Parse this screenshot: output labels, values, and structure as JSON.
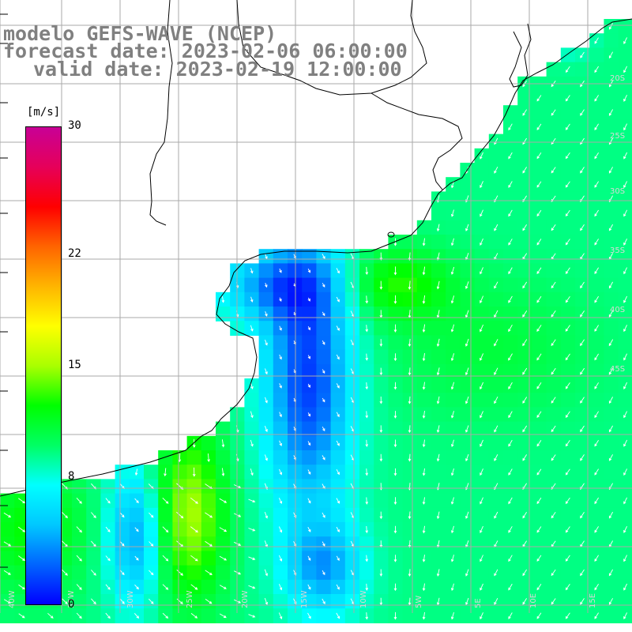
{
  "title": {
    "line1": "modelo GEFS-WAVE (NCEP)",
    "line2": "forecast date: 2023-02-06 06:00:00",
    "line3": "valid date: 2023-02-19 12:00:00"
  },
  "colorbar": {
    "unit": "[m/s]",
    "ticks": [
      {
        "label": "30",
        "value": 30
      },
      {
        "label": "22",
        "value": 22
      },
      {
        "label": "15",
        "value": 15
      },
      {
        "label": "8",
        "value": 8
      },
      {
        "label": "0",
        "value": 0
      }
    ],
    "stops": [
      "#0000ff",
      "#0064ff",
      "#00c8ff",
      "#00ffff",
      "#00ff64",
      "#00ff00",
      "#aaff00",
      "#ffff00",
      "#ffb400",
      "#ff6400",
      "#ff0000",
      "#e6005a",
      "#c80096"
    ]
  },
  "map": {
    "grid_labels": [
      "40W",
      "35W",
      "30W",
      "25W",
      "20W",
      "15W",
      "10W",
      "5W",
      "5E",
      "10E",
      "15E",
      "20S",
      "25S",
      "30S",
      "35S",
      "40S",
      "45S"
    ],
    "colors": {
      "land": "#ffffff",
      "coast": "#000000",
      "grid": "#aaaaaa",
      "arrow": "#ffffff"
    }
  }
}
